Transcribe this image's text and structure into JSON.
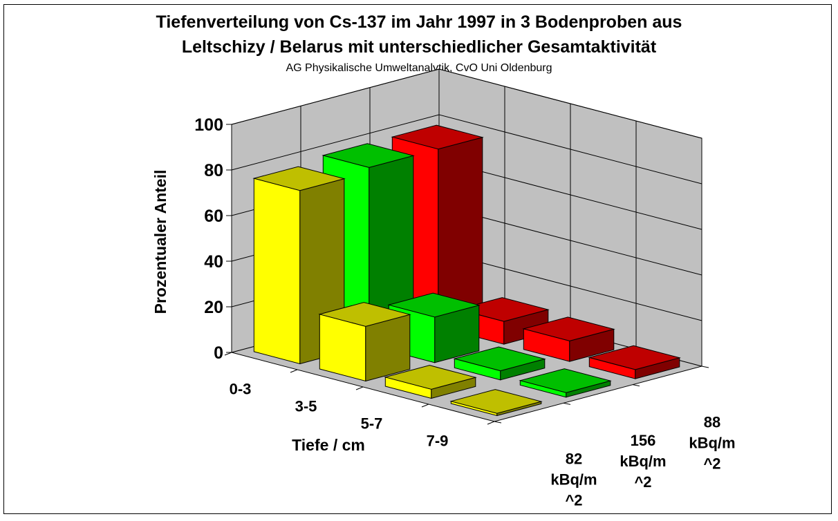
{
  "chart_data": {
    "type": "bar",
    "title": "Tiefenverteilung von Cs-137 im Jahr 1997 in 3 Bodenproben aus",
    "title_line2": "Leltschizy / Belarus mit unterschiedlicher Gesamtaktivität",
    "subtitle": "AG Physikalische Umweltanalytik, CvO Uni Oldenburg",
    "xlabel": "Tiefe / cm",
    "ylabel": "Prozentualer Anteil",
    "ylim": [
      0,
      100
    ],
    "yticks": [
      "0",
      "20",
      "40",
      "60",
      "80",
      "100"
    ],
    "categories": [
      "0-3",
      "3-5",
      "5-7",
      "7-9"
    ],
    "series": [
      {
        "name": "82 kBq/m ^2",
        "name_lines": [
          "82",
          "kBq/m",
          "^2"
        ],
        "values": [
          76,
          24,
          4,
          1
        ],
        "color": "#ffff00"
      },
      {
        "name": "156 kBq/m ^2",
        "name_lines": [
          "156",
          "kBq/m",
          "^2"
        ],
        "values": [
          78,
          20,
          4,
          2
        ],
        "color": "#00ff00"
      },
      {
        "name": "88 kBq/m ^2",
        "name_lines": [
          "88",
          "kBq/m",
          "^2"
        ],
        "values": [
          78,
          10,
          9,
          4
        ],
        "color": "#ff0000"
      }
    ],
    "grid": true,
    "chart_style": "3d-column"
  }
}
